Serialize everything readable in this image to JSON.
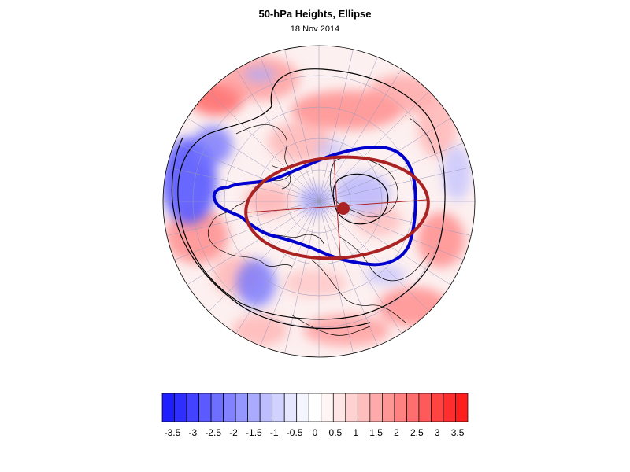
{
  "title": "50-hPa Heights, Ellipse",
  "subtitle": "18 Nov 2014",
  "colorbar": {
    "colors": [
      "#1e1eff",
      "#2e2eff",
      "#4343ff",
      "#5a5aff",
      "#6e6eff",
      "#8282ff",
      "#9696ff",
      "#aaaaff",
      "#bebeff",
      "#d2d2ff",
      "#e6e6ff",
      "#f5f5ff",
      "#ffffff",
      "#fff5f5",
      "#ffe6e6",
      "#ffd2d2",
      "#ffbebe",
      "#ffaaaa",
      "#ff9696",
      "#ff8282",
      "#ff6e6e",
      "#ff5a5a",
      "#ff4343",
      "#ff2e2e",
      "#ff1e1e"
    ],
    "tick_labels": [
      "-3.5",
      "-3",
      "-2.5",
      "-2",
      "-1.5",
      "-1",
      "-0.5",
      "0",
      "0.5",
      "1",
      "1.5",
      "2",
      "2.5",
      "3",
      "3.5"
    ]
  },
  "map_colors": {
    "ocean_base": "#fdf0f0",
    "blue_contour": "#0000cc",
    "red_ellipse": "#aa2222",
    "center_dot": "#aa2222",
    "coast": "#000000",
    "grid": "#9999bb"
  }
}
